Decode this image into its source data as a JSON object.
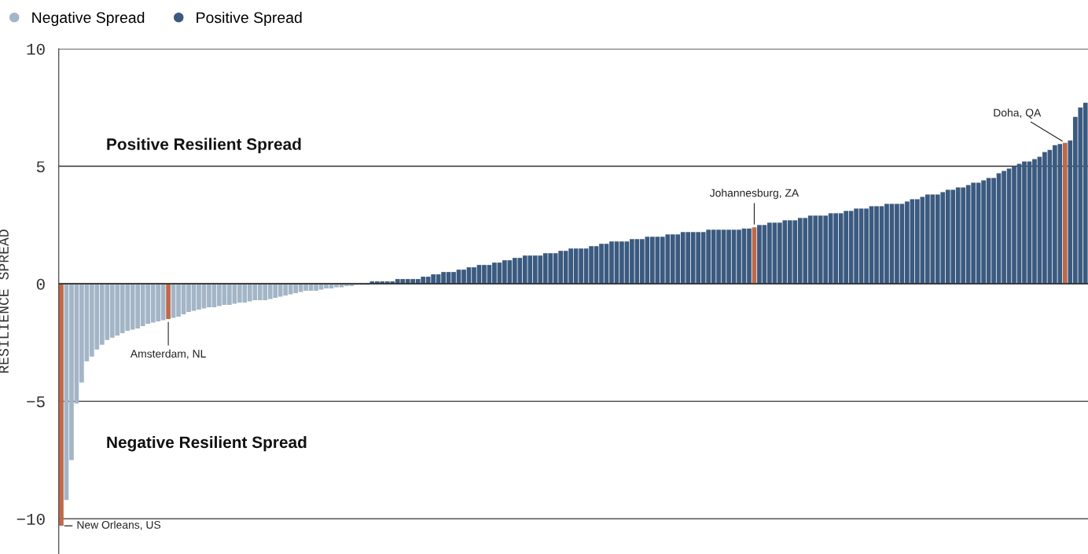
{
  "chart_data": {
    "type": "bar",
    "ylabel": "RESILIENCE SPREAD",
    "categories": [
      null,
      null,
      null,
      null,
      null,
      null,
      null,
      null,
      null,
      null,
      null,
      null,
      null,
      null,
      null,
      null,
      null,
      null,
      null,
      null,
      null,
      null,
      null,
      null,
      null,
      null,
      null,
      null,
      null,
      null,
      null,
      null,
      null,
      null,
      null,
      null,
      null,
      null,
      null,
      null,
      null,
      null,
      null,
      null,
      null,
      null,
      null,
      null,
      null,
      null,
      null,
      null,
      null,
      null,
      null,
      null,
      null,
      null,
      null,
      null,
      null,
      null,
      null,
      null,
      null,
      null,
      null,
      null,
      null,
      null,
      null,
      null,
      null,
      null,
      null,
      null,
      null,
      null,
      null,
      null,
      null,
      null,
      null,
      null,
      null,
      null,
      null,
      null,
      null,
      null,
      null,
      null,
      null,
      null,
      null,
      null,
      null,
      null,
      null,
      null,
      null,
      null,
      null,
      null,
      null,
      null,
      null,
      null,
      null,
      null,
      null,
      null,
      null,
      null,
      null,
      null,
      null,
      null,
      null,
      null,
      null,
      null,
      null,
      null,
      null,
      null,
      null,
      null,
      null,
      null,
      null,
      null,
      null,
      null,
      null,
      null,
      null,
      null,
      null,
      null,
      null,
      null,
      null,
      null,
      null,
      null,
      null,
      null,
      null,
      null,
      null,
      null,
      null,
      null,
      null,
      null,
      null,
      null,
      null,
      null,
      null,
      null,
      null,
      null,
      null,
      null,
      null,
      null,
      null,
      null,
      null,
      null,
      null,
      null,
      null,
      null,
      null,
      null,
      null,
      null,
      null,
      null,
      null,
      null,
      null,
      null,
      null,
      null,
      null,
      null,
      null,
      null,
      null,
      null,
      null,
      null,
      null,
      null,
      null,
      null,
      null,
      null
    ],
    "series": [
      {
        "name": "Negative Spread",
        "color": "#a3b5c6",
        "values": [
          null,
          -9.2,
          -7.5,
          -5.1,
          -4.2,
          -3.3,
          -3.1,
          -2.8,
          -2.6,
          -2.4,
          -2.3,
          -2.2,
          -2.1,
          -2.0,
          -1.95,
          -1.9,
          -1.8,
          -1.7,
          -1.65,
          -1.6,
          -1.55,
          null,
          -1.45,
          -1.4,
          -1.3,
          -1.2,
          -1.15,
          -1.1,
          -1.05,
          -1.0,
          -1.0,
          -0.95,
          -0.9,
          -0.9,
          -0.85,
          -0.8,
          -0.8,
          -0.75,
          -0.7,
          -0.7,
          -0.7,
          -0.65,
          -0.6,
          -0.55,
          -0.5,
          -0.45,
          -0.4,
          -0.35,
          -0.3,
          -0.3,
          -0.3,
          -0.25,
          -0.2,
          -0.2,
          -0.15,
          -0.15,
          -0.1,
          -0.1,
          -0.05,
          -0.05,
          -0.05,
          null,
          null,
          null,
          null,
          null,
          null,
          null,
          null,
          null,
          null,
          null,
          null,
          null,
          null,
          null,
          null,
          null,
          null,
          null,
          null,
          null,
          null,
          null,
          null,
          null,
          null,
          null,
          null,
          null,
          null,
          null,
          null,
          null,
          null,
          null,
          null,
          null,
          null,
          null,
          null,
          null,
          null,
          null,
          null,
          null,
          null,
          null,
          null,
          null,
          null,
          null,
          null,
          null,
          null,
          null,
          null,
          null,
          null,
          null,
          null,
          null,
          null,
          null,
          null,
          null,
          null,
          null,
          null,
          null,
          null,
          null,
          null,
          null,
          null,
          null,
          null,
          null,
          null,
          null,
          null,
          null,
          null,
          null,
          null,
          null,
          null,
          null,
          null,
          null,
          null,
          null,
          null,
          null,
          null,
          null,
          null,
          null,
          null,
          null,
          null,
          null,
          null,
          null,
          null,
          null,
          null,
          null,
          null,
          null,
          null,
          null,
          null,
          null,
          null,
          null,
          null,
          null,
          null,
          null,
          null,
          null,
          null,
          null,
          null,
          null,
          null,
          null,
          null,
          null,
          null,
          null,
          null,
          null,
          null,
          null,
          null,
          null,
          null,
          null,
          null,
          null
        ]
      },
      {
        "name": "Positive Spread",
        "color": "#3b5a80",
        "values": [
          null,
          null,
          null,
          null,
          null,
          null,
          null,
          null,
          null,
          null,
          null,
          null,
          null,
          null,
          null,
          null,
          null,
          null,
          null,
          null,
          null,
          null,
          null,
          null,
          null,
          null,
          null,
          null,
          null,
          null,
          null,
          null,
          null,
          null,
          null,
          null,
          null,
          null,
          null,
          null,
          null,
          null,
          null,
          null,
          null,
          null,
          null,
          null,
          null,
          null,
          null,
          null,
          null,
          null,
          null,
          null,
          null,
          null,
          null,
          null,
          null,
          0.1,
          0.1,
          0.1,
          0.1,
          0.1,
          0.2,
          0.2,
          0.2,
          0.2,
          0.2,
          0.3,
          0.3,
          0.4,
          0.4,
          0.5,
          0.5,
          0.5,
          0.6,
          0.6,
          0.7,
          0.7,
          0.8,
          0.8,
          0.8,
          0.9,
          0.9,
          1.0,
          1.0,
          1.1,
          1.1,
          1.2,
          1.2,
          1.2,
          1.2,
          1.3,
          1.3,
          1.3,
          1.4,
          1.4,
          1.5,
          1.5,
          1.5,
          1.5,
          1.6,
          1.6,
          1.7,
          1.7,
          1.8,
          1.8,
          1.8,
          1.8,
          1.9,
          1.9,
          1.9,
          2.0,
          2.0,
          2.0,
          2.0,
          2.1,
          2.1,
          2.1,
          2.2,
          2.2,
          2.2,
          2.2,
          2.2,
          2.3,
          2.3,
          2.3,
          2.3,
          2.3,
          2.3,
          2.3,
          2.35,
          2.35,
          null,
          2.5,
          2.5,
          2.6,
          2.6,
          2.6,
          2.7,
          2.7,
          2.7,
          2.8,
          2.8,
          2.9,
          2.9,
          2.9,
          2.9,
          3.0,
          3.0,
          3.0,
          3.1,
          3.1,
          3.2,
          3.2,
          3.2,
          3.3,
          3.3,
          3.3,
          3.4,
          3.4,
          3.4,
          3.4,
          3.5,
          3.6,
          3.6,
          3.7,
          3.8,
          3.8,
          3.8,
          3.9,
          4.0,
          4.0,
          4.1,
          4.1,
          4.2,
          4.3,
          4.3,
          4.4,
          4.5,
          4.5,
          4.7,
          4.8,
          4.9,
          5.0,
          5.1,
          5.2,
          5.2,
          5.3,
          5.4,
          5.6,
          5.7,
          5.9,
          5.95,
          null,
          6.1,
          7.1,
          7.5,
          7.7
        ]
      },
      {
        "color": "#c0694a",
        "values": [
          -10.3,
          null,
          null,
          null,
          null,
          null,
          null,
          null,
          null,
          null,
          null,
          null,
          null,
          null,
          null,
          null,
          null,
          null,
          null,
          null,
          null,
          -1.5,
          null,
          null,
          null,
          null,
          null,
          null,
          null,
          null,
          null,
          null,
          null,
          null,
          null,
          null,
          null,
          null,
          null,
          null,
          null,
          null,
          null,
          null,
          null,
          null,
          null,
          null,
          null,
          null,
          null,
          null,
          null,
          null,
          null,
          null,
          null,
          null,
          null,
          null,
          null,
          null,
          null,
          null,
          null,
          null,
          null,
          null,
          null,
          null,
          null,
          null,
          null,
          null,
          null,
          null,
          null,
          null,
          null,
          null,
          null,
          null,
          null,
          null,
          null,
          null,
          null,
          null,
          null,
          null,
          null,
          null,
          null,
          null,
          null,
          null,
          null,
          null,
          null,
          null,
          null,
          null,
          null,
          null,
          null,
          null,
          null,
          null,
          null,
          null,
          null,
          null,
          null,
          null,
          null,
          null,
          null,
          null,
          null,
          null,
          null,
          null,
          null,
          null,
          null,
          null,
          null,
          null,
          null,
          null,
          null,
          null,
          null,
          null,
          null,
          null,
          2.4,
          null,
          null,
          null,
          null,
          null,
          null,
          null,
          null,
          null,
          null,
          null,
          null,
          null,
          null,
          null,
          null,
          null,
          null,
          null,
          null,
          null,
          null,
          null,
          null,
          null,
          null,
          null,
          null,
          null,
          null,
          null,
          null,
          null,
          null,
          null,
          null,
          null,
          null,
          null,
          null,
          null,
          null,
          null,
          null,
          null,
          null,
          null,
          null,
          null,
          null,
          null,
          null,
          null,
          null,
          null,
          null,
          null,
          null,
          null,
          null,
          6.0,
          null,
          null,
          null,
          null
        ]
      }
    ],
    "ylim": [
      -11.5,
      10
    ],
    "yticks": [
      {
        "value": -10,
        "label": "−10"
      },
      {
        "value": -5,
        "label": "−5"
      },
      0,
      5,
      10
    ],
    "grid": "y",
    "legend": "top left",
    "annotations": [
      "Positive Resilient Spread",
      "Negative Resilient Spread",
      "New Orleans, US",
      "Amsterdam, NL",
      "Johannesburg, ZA",
      "Doha, QA"
    ]
  }
}
